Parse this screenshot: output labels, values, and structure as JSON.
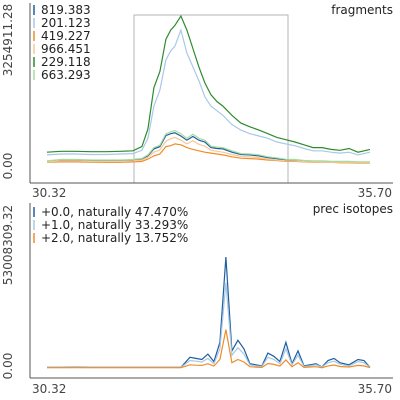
{
  "chart_data": [
    {
      "type": "line",
      "title": "fragments",
      "xlim": [
        30.32,
        35.7
      ],
      "ylim": [
        0.0,
        3254911.28
      ],
      "x_ticks": [
        "30.32",
        "35.70"
      ],
      "y_ticks": [
        "0.00",
        "3254911.28"
      ],
      "x": [
        30.32,
        30.55,
        30.8,
        31.05,
        31.3,
        31.55,
        31.75,
        31.9,
        32.0,
        32.1,
        32.2,
        32.3,
        32.38,
        32.45,
        32.55,
        32.65,
        32.75,
        32.85,
        32.95,
        33.05,
        33.15,
        33.25,
        33.4,
        33.55,
        33.7,
        33.85,
        34.0,
        34.15,
        34.3,
        34.45,
        34.6,
        34.75,
        34.9,
        35.05,
        35.2,
        35.35,
        35.5,
        35.7
      ],
      "series": [
        {
          "name": "819.383",
          "color": "#1f5fa0",
          "values": [
            100000,
            130000,
            130000,
            120000,
            120000,
            120000,
            130000,
            150000,
            220000,
            370000,
            420000,
            660000,
            700000,
            720000,
            650000,
            560000,
            640000,
            560000,
            520000,
            400000,
            380000,
            370000,
            300000,
            250000,
            240000,
            220000,
            180000,
            160000,
            130000,
            130000,
            110000,
            100000,
            100000,
            90000,
            90000,
            90000,
            80000,
            80000
          ]
        },
        {
          "name": "201.123",
          "color": "#a8c8e6",
          "values": [
            240000,
            260000,
            260000,
            250000,
            250000,
            260000,
            270000,
            340000,
            600000,
            1300000,
            1650000,
            2300000,
            2500000,
            2600000,
            2950000,
            2450000,
            2150000,
            1850000,
            1500000,
            1300000,
            1200000,
            1100000,
            900000,
            780000,
            700000,
            650000,
            600000,
            520000,
            480000,
            440000,
            380000,
            330000,
            330000,
            300000,
            280000,
            300000,
            240000,
            300000
          ]
        },
        {
          "name": "419.227",
          "color": "#f08c28",
          "values": [
            80000,
            90000,
            90000,
            85000,
            80000,
            80000,
            90000,
            100000,
            150000,
            220000,
            260000,
            420000,
            440000,
            480000,
            460000,
            400000,
            360000,
            330000,
            300000,
            280000,
            260000,
            240000,
            200000,
            170000,
            160000,
            150000,
            130000,
            120000,
            100000,
            100000,
            90000,
            80000,
            80000,
            80000,
            70000,
            70000,
            60000,
            60000
          ]
        },
        {
          "name": "966.451",
          "color": "#f8c896",
          "values": [
            90000,
            110000,
            110000,
            100000,
            100000,
            100000,
            110000,
            130000,
            190000,
            300000,
            350000,
            540000,
            590000,
            620000,
            560000,
            480000,
            550000,
            470000,
            430000,
            340000,
            320000,
            300000,
            250000,
            210000,
            200000,
            180000,
            150000,
            130000,
            110000,
            110000,
            95000,
            90000,
            85000,
            80000,
            80000,
            80000,
            70000,
            70000
          ]
        },
        {
          "name": "229.118",
          "color": "#2e8b2e",
          "values": [
            300000,
            320000,
            320000,
            310000,
            310000,
            320000,
            330000,
            420000,
            800000,
            1700000,
            2050000,
            2750000,
            2950000,
            3050000,
            3254911.28,
            2950000,
            2550000,
            2150000,
            1800000,
            1550000,
            1400000,
            1300000,
            1100000,
            930000,
            850000,
            780000,
            700000,
            620000,
            570000,
            520000,
            460000,
            400000,
            400000,
            360000,
            340000,
            380000,
            300000,
            360000
          ]
        },
        {
          "name": "663.293",
          "color": "#a6dca0",
          "values": [
            110000,
            140000,
            140000,
            130000,
            130000,
            130000,
            140000,
            165000,
            240000,
            400000,
            450000,
            700000,
            740000,
            770000,
            700000,
            600000,
            690000,
            600000,
            560000,
            430000,
            410000,
            400000,
            330000,
            270000,
            260000,
            240000,
            200000,
            175000,
            145000,
            140000,
            120000,
            110000,
            110000,
            100000,
            100000,
            100000,
            90000,
            90000
          ]
        }
      ]
    },
    {
      "type": "line",
      "title": "prec isotopes",
      "xlim": [
        30.32,
        35.7
      ],
      "ylim": [
        0.0,
        53008309.32
      ],
      "x_ticks": [
        "30.32",
        "35.70"
      ],
      "y_ticks": [
        "0.00",
        "53008309.32"
      ],
      "x": [
        30.32,
        30.55,
        30.8,
        31.05,
        31.3,
        31.55,
        31.75,
        31.95,
        32.1,
        32.25,
        32.4,
        32.55,
        32.7,
        32.8,
        32.9,
        33.0,
        33.1,
        33.2,
        33.3,
        33.4,
        33.5,
        33.6,
        33.7,
        33.8,
        33.9,
        34.0,
        34.1,
        34.2,
        34.3,
        34.4,
        34.5,
        34.6,
        34.7,
        34.8,
        34.9,
        35.0,
        35.1,
        35.2,
        35.35,
        35.5,
        35.6,
        35.7
      ],
      "series": [
        {
          "name": "+0.0, naturally 47.470%",
          "color": "#1f5fa0",
          "values": [
            300000,
            300000,
            400000,
            300000,
            300000,
            300000,
            300000,
            300000,
            300000,
            300000,
            300000,
            300000,
            5000000,
            4500000,
            4000000,
            6500000,
            3000000,
            12000000,
            52000000,
            8000000,
            13000000,
            9000000,
            2000000,
            1500000,
            1000000,
            7000000,
            5500000,
            3000000,
            12000000,
            2000000,
            8000000,
            1000000,
            1500000,
            2000000,
            500000,
            3500000,
            4500000,
            2500000,
            1500000,
            4000000,
            3500000,
            300000
          ]
        },
        {
          "name": "+1.0, naturally 33.293%",
          "color": "#a8c8e6",
          "values": [
            250000,
            250000,
            300000,
            250000,
            250000,
            250000,
            250000,
            250000,
            250000,
            250000,
            250000,
            250000,
            3500000,
            3200000,
            2800000,
            4500000,
            2000000,
            9000000,
            40000000,
            6000000,
            9500000,
            6500000,
            1500000,
            1000000,
            700000,
            5000000,
            4000000,
            2000000,
            9000000,
            1500000,
            6000000,
            700000,
            1000000,
            1500000,
            400000,
            2500000,
            3200000,
            1800000,
            1000000,
            3000000,
            2500000,
            250000
          ]
        },
        {
          "name": "+2.0, naturally 13.752%",
          "color": "#f08c28",
          "values": [
            150000,
            150000,
            150000,
            150000,
            150000,
            150000,
            150000,
            150000,
            150000,
            150000,
            150000,
            150000,
            1500000,
            1300000,
            1200000,
            2000000,
            900000,
            4000000,
            18000000,
            2500000,
            4000000,
            2800000,
            600000,
            400000,
            300000,
            2100000,
            1700000,
            900000,
            3800000,
            600000,
            2500000,
            300000,
            450000,
            600000,
            150000,
            1000000,
            1400000,
            700000,
            450000,
            1200000,
            1000000,
            150000
          ]
        }
      ]
    }
  ]
}
